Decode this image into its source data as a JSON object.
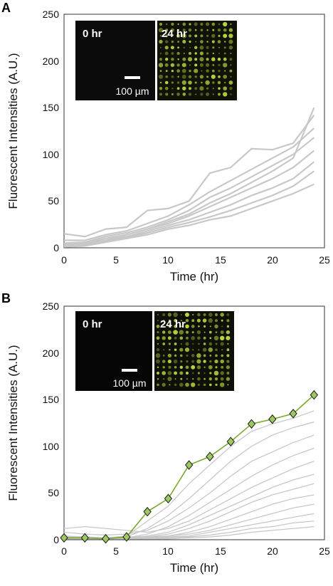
{
  "panels": [
    {
      "label": "A",
      "xlabel": "Time (hr)",
      "ylabel": "Fluorescent Intensities (A.U.)",
      "xticks": [
        "0",
        "5",
        "10",
        "15",
        "20",
        "25"
      ],
      "yticks": [
        "0",
        "50",
        "100",
        "150",
        "200",
        "250"
      ],
      "inset_left": "0 hr",
      "inset_right": "24 hr",
      "scale_bar": "100 µm"
    },
    {
      "label": "B",
      "xlabel": "Time (hr)",
      "ylabel": "Fluorescent Intensities (A.U.)",
      "xticks": [
        "0",
        "5",
        "10",
        "15",
        "20",
        "25"
      ],
      "yticks": [
        "0",
        "50",
        "100",
        "150",
        "200",
        "250"
      ],
      "inset_left": "0 hr",
      "inset_right": "24 hr",
      "scale_bar": "100 µm"
    }
  ],
  "colors": {
    "background_traces": "#c8c8c8",
    "highlight_line": "#7aa832",
    "highlight_marker": "#9fc860",
    "marker_edge": "#1a1a1a",
    "inset_bg": "#0b0b0b",
    "inset_spots": "#b8d840"
  },
  "chart_data": [
    {
      "type": "line",
      "xlim": [
        0,
        25
      ],
      "ylim": [
        0,
        250
      ],
      "grid": false,
      "x": [
        0,
        2,
        4,
        6,
        8,
        10,
        12,
        14,
        16,
        18,
        20,
        22,
        24
      ],
      "series": [
        {
          "values": [
            2,
            4,
            8,
            14,
            20,
            28,
            36,
            48,
            58,
            70,
            82,
            96,
            150
          ]
        },
        {
          "values": [
            15,
            12,
            20,
            22,
            40,
            42,
            50,
            80,
            86,
            106,
            105,
            112,
            142
          ]
        },
        {
          "values": [
            8,
            8,
            14,
            18,
            26,
            34,
            46,
            60,
            72,
            84,
            96,
            108,
            128
          ]
        },
        {
          "values": [
            5,
            6,
            12,
            16,
            22,
            30,
            40,
            54,
            64,
            76,
            88,
            100,
            118
          ]
        },
        {
          "values": [
            4,
            5,
            10,
            14,
            20,
            26,
            34,
            44,
            54,
            64,
            74,
            86,
            104
          ]
        },
        {
          "values": [
            3,
            4,
            8,
            12,
            18,
            24,
            30,
            38,
            46,
            56,
            64,
            74,
            92
          ]
        },
        {
          "values": [
            2,
            3,
            7,
            11,
            16,
            22,
            27,
            33,
            40,
            48,
            56,
            66,
            82
          ]
        },
        {
          "values": [
            1,
            2,
            6,
            10,
            14,
            20,
            24,
            30,
            34,
            42,
            50,
            58,
            68
          ]
        }
      ]
    },
    {
      "type": "line",
      "xlim": [
        0,
        25
      ],
      "ylim": [
        0,
        250
      ],
      "grid": false,
      "x": [
        0,
        2,
        4,
        6,
        8,
        10,
        12,
        14,
        16,
        18,
        20,
        22,
        24
      ],
      "series": [
        {
          "values": [
            2,
            2,
            1,
            3,
            30,
            44,
            80,
            89,
            105,
            124,
            129,
            135,
            155
          ]
        },
        {
          "values": [
            4,
            3,
            2,
            4,
            20,
            36,
            60,
            80,
            100,
            116,
            124,
            130,
            138
          ]
        },
        {
          "values": [
            3,
            2,
            2,
            3,
            12,
            26,
            44,
            64,
            84,
            100,
            112,
            120,
            126
          ]
        },
        {
          "values": [
            8,
            6,
            5,
            6,
            10,
            20,
            34,
            50,
            68,
            84,
            94,
            104,
            112
          ]
        },
        {
          "values": [
            2,
            2,
            1,
            2,
            6,
            14,
            26,
            40,
            54,
            68,
            80,
            90,
            98
          ]
        },
        {
          "values": [
            12,
            14,
            12,
            10,
            8,
            12,
            20,
            32,
            44,
            56,
            66,
            76,
            84
          ]
        },
        {
          "values": [
            1,
            1,
            1,
            2,
            4,
            8,
            16,
            26,
            36,
            46,
            56,
            64,
            70
          ]
        },
        {
          "values": [
            2,
            2,
            2,
            2,
            3,
            6,
            12,
            20,
            30,
            40,
            48,
            54,
            60
          ]
        },
        {
          "values": [
            1,
            2,
            1,
            1,
            2,
            4,
            8,
            14,
            22,
            30,
            38,
            44,
            48
          ]
        },
        {
          "values": [
            3,
            3,
            2,
            3,
            3,
            4,
            6,
            10,
            16,
            22,
            28,
            34,
            38
          ]
        },
        {
          "values": [
            1,
            1,
            1,
            1,
            2,
            3,
            4,
            8,
            12,
            16,
            20,
            24,
            28
          ]
        },
        {
          "values": [
            2,
            2,
            2,
            2,
            2,
            2,
            3,
            5,
            8,
            12,
            14,
            18,
            20
          ]
        },
        {
          "values": [
            1,
            1,
            1,
            1,
            1,
            1,
            2,
            3,
            5,
            8,
            10,
            12,
            14
          ]
        }
      ],
      "highlight_index": 0
    }
  ]
}
